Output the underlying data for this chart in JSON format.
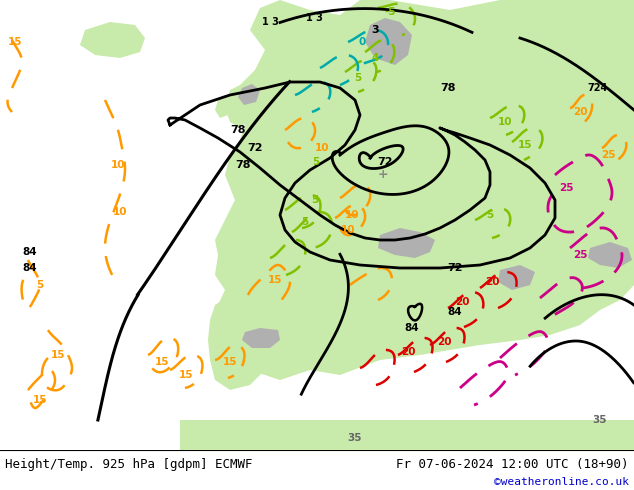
{
  "title_left": "Height/Temp. 925 hPa [gdpm] ECMWF",
  "title_right": "Fr 07-06-2024 12:00 UTC (18+90)",
  "credit": "©weatheronline.co.uk",
  "bg_color": "#f0f0f0",
  "land_color": "#c8eaab",
  "sea_color": "#e8e8e8",
  "mountain_color": "#b0b0b0",
  "footer_color": "#ffffff",
  "title_color": "#000000",
  "credit_color": "#0000cc",
  "fig_width": 6.34,
  "fig_height": 4.9,
  "dpi": 100,
  "title_fontsize": 9.0,
  "credit_fontsize": 8.0
}
